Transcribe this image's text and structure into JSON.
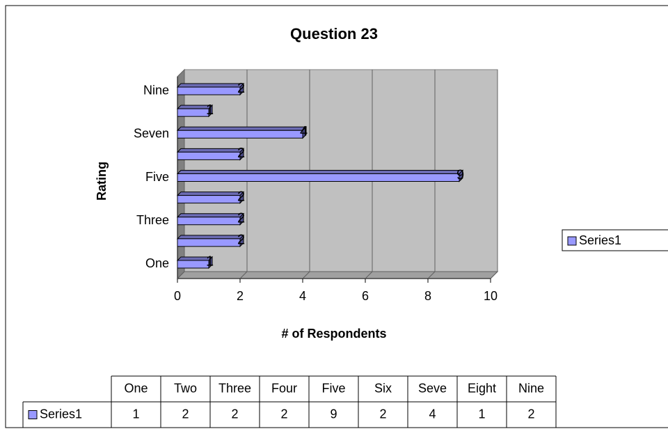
{
  "chart_data": {
    "type": "bar3d_horizontal",
    "title": "Question 23",
    "x_axis_label": "# of Respondents",
    "y_axis_label": "Rating",
    "categories": [
      "One",
      null,
      "Three",
      null,
      "Five",
      null,
      "Seven",
      null,
      "Nine"
    ],
    "series": [
      {
        "name": "Series1",
        "color": "#9999ff",
        "values": [
          1,
          2,
          2,
          2,
          9,
          2,
          4,
          1,
          2
        ]
      }
    ],
    "xlim": [
      0,
      10
    ],
    "xticks": [
      0,
      2,
      4,
      6,
      8,
      10
    ],
    "grid": true,
    "legend": "right",
    "table": {
      "columns": [
        "One",
        "Two",
        "Three",
        "Four",
        "Five",
        "Six",
        "Seve",
        "Eight",
        "Nine"
      ]
    }
  }
}
